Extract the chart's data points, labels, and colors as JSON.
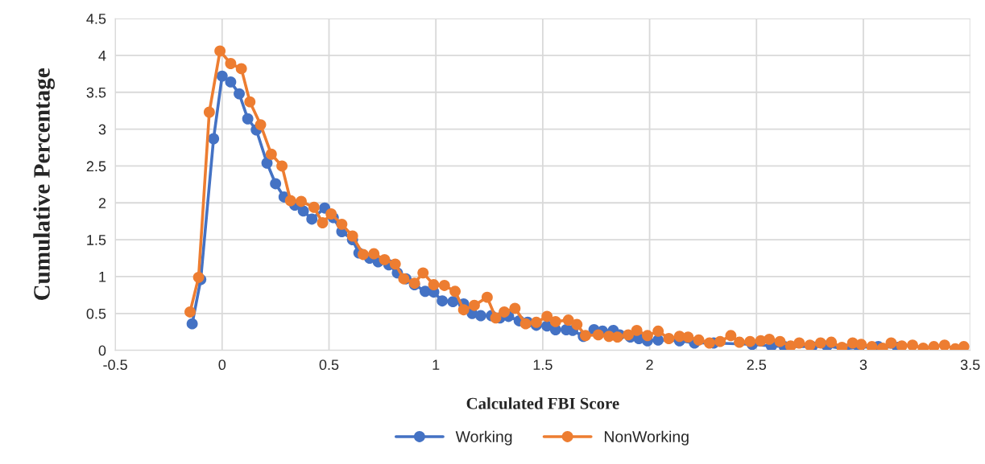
{
  "chart_data": {
    "type": "line",
    "xlabel": "Calculated FBI Score",
    "ylabel": "Cumulative Percentage",
    "xlim": [
      -0.5,
      3.5
    ],
    "xticks": [
      -0.5,
      0,
      0.5,
      1,
      1.5,
      2,
      2.5,
      3,
      3.5
    ],
    "ylim": [
      0,
      4.5
    ],
    "yticks": [
      0,
      0.5,
      1,
      1.5,
      2,
      2.5,
      3,
      3.5,
      4,
      4.5
    ],
    "grid": true,
    "legend": "bottom",
    "marker": "circle",
    "line_style": "solid",
    "series": [
      {
        "name": "Working",
        "color": "#4472c4",
        "x": [
          -0.14,
          -0.1,
          -0.04,
          0.0,
          0.04,
          0.08,
          0.12,
          0.16,
          0.21,
          0.25,
          0.29,
          0.34,
          0.38,
          0.42,
          0.48,
          0.52,
          0.56,
          0.61,
          0.64,
          0.69,
          0.73,
          0.78,
          0.82,
          0.86,
          0.9,
          0.95,
          0.99,
          1.03,
          1.08,
          1.13,
          1.17,
          1.21,
          1.26,
          1.3,
          1.34,
          1.39,
          1.43,
          1.47,
          1.52,
          1.56,
          1.61,
          1.64,
          1.69,
          1.74,
          1.78,
          1.83,
          1.86,
          1.91,
          1.95,
          1.99,
          2.04,
          2.14,
          2.21,
          2.3,
          2.48,
          2.57,
          2.63,
          2.76,
          2.83,
          2.91,
          2.98,
          3.07,
          3.16
        ],
        "values": [
          0.36,
          0.96,
          2.87,
          3.72,
          3.64,
          3.48,
          3.14,
          2.99,
          2.54,
          2.26,
          2.08,
          1.97,
          1.89,
          1.78,
          1.93,
          1.8,
          1.61,
          1.5,
          1.32,
          1.25,
          1.2,
          1.16,
          1.05,
          0.97,
          0.89,
          0.8,
          0.79,
          0.67,
          0.66,
          0.63,
          0.5,
          0.47,
          0.47,
          0.44,
          0.46,
          0.4,
          0.38,
          0.34,
          0.33,
          0.28,
          0.28,
          0.27,
          0.19,
          0.28,
          0.26,
          0.27,
          0.21,
          0.18,
          0.16,
          0.13,
          0.14,
          0.13,
          0.1,
          0.1,
          0.08,
          0.06,
          0.05,
          0.05,
          0.06,
          0.02,
          0.04,
          0.05,
          0.04
        ]
      },
      {
        "name": "NonWorking",
        "color": "#ed7d31",
        "x": [
          -0.15,
          -0.11,
          -0.06,
          -0.01,
          0.04,
          0.09,
          0.13,
          0.18,
          0.23,
          0.28,
          0.32,
          0.37,
          0.43,
          0.47,
          0.51,
          0.56,
          0.61,
          0.66,
          0.71,
          0.76,
          0.81,
          0.85,
          0.9,
          0.94,
          0.99,
          1.04,
          1.09,
          1.13,
          1.18,
          1.24,
          1.28,
          1.32,
          1.37,
          1.42,
          1.47,
          1.52,
          1.56,
          1.62,
          1.66,
          1.7,
          1.76,
          1.81,
          1.85,
          1.9,
          1.94,
          1.99,
          2.04,
          2.09,
          2.14,
          2.18,
          2.23,
          2.28,
          2.33,
          2.38,
          2.42,
          2.47,
          2.52,
          2.56,
          2.61,
          2.66,
          2.7,
          2.75,
          2.8,
          2.85,
          2.9,
          2.95,
          2.99,
          3.04,
          3.09,
          3.13,
          3.18,
          3.23,
          3.28,
          3.33,
          3.38,
          3.43,
          3.47
        ],
        "values": [
          0.52,
          0.99,
          3.23,
          4.06,
          3.89,
          3.82,
          3.37,
          3.06,
          2.66,
          2.5,
          2.03,
          2.02,
          1.94,
          1.73,
          1.85,
          1.71,
          1.55,
          1.3,
          1.31,
          1.23,
          1.17,
          0.97,
          0.91,
          1.05,
          0.89,
          0.88,
          0.8,
          0.55,
          0.61,
          0.72,
          0.44,
          0.52,
          0.57,
          0.36,
          0.38,
          0.46,
          0.39,
          0.41,
          0.35,
          0.2,
          0.21,
          0.19,
          0.18,
          0.21,
          0.27,
          0.2,
          0.26,
          0.16,
          0.19,
          0.18,
          0.14,
          0.1,
          0.12,
          0.2,
          0.11,
          0.12,
          0.13,
          0.15,
          0.12,
          0.06,
          0.1,
          0.07,
          0.1,
          0.11,
          0.04,
          0.1,
          0.08,
          0.05,
          0.03,
          0.1,
          0.06,
          0.07,
          0.03,
          0.05,
          0.07,
          0.02,
          0.05
        ]
      }
    ]
  }
}
